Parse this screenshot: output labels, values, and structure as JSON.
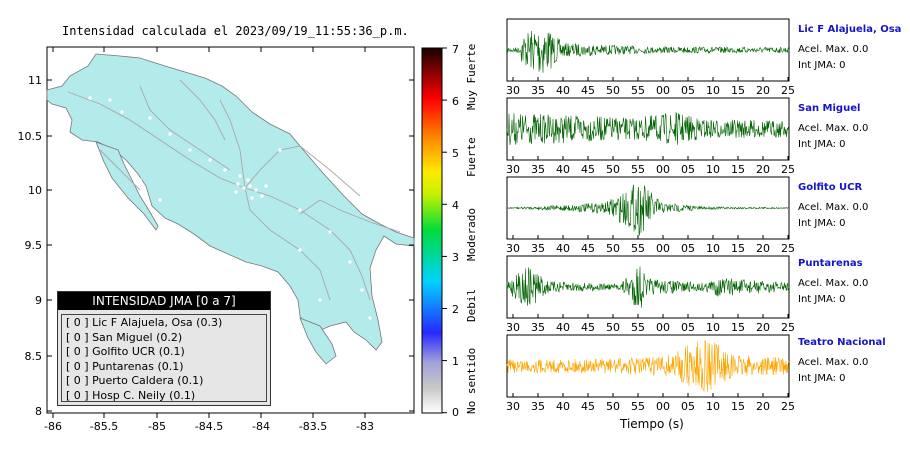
{
  "map": {
    "title": "Intensidad calculada el 2023/09/19_11:55:36_p.m.",
    "x_ticks": [
      "-86",
      "-85.5",
      "-85",
      "-84.5",
      "-84",
      "-83.5",
      "-83"
    ],
    "y_ticks": [
      "11",
      "10.5",
      "10",
      "9.5",
      "9",
      "8.5",
      "8"
    ],
    "land_color": "#b3eaea"
  },
  "legend": {
    "title": "INTENSIDAD JMA [0 a 7]",
    "items": [
      "[ 0 ]  Lic F Alajuela, Osa (0.3)",
      "[ 0 ]  San Miguel (0.2)",
      "[ 0 ]  Golfito UCR (0.1)",
      "[ 0 ]  Puntarenas (0.1)",
      "[ 0 ]  Puerto Caldera (0.1)",
      "[ 0 ]  Hosp C. Neily (0.1)"
    ]
  },
  "colorbar": {
    "tick_labels": [
      "7",
      "6",
      "5",
      "4",
      "3",
      "2",
      "1",
      "0"
    ],
    "labels": [
      "Muy Fuerte",
      "Fuerte",
      "Moderado",
      "Debil",
      "No sentido"
    ]
  },
  "stations": [
    {
      "name": "Lic F Alajuela, Osa",
      "acel": "Acel. Max. 0.0",
      "int": "Int JMA: 0",
      "color": "#006400",
      "ticks": [
        "30",
        "35",
        "40",
        "45",
        "50",
        "55",
        "00",
        "05",
        "10",
        "15",
        "20",
        "25"
      ]
    },
    {
      "name": "San Miguel",
      "acel": "Acel. Max. 0.0",
      "int": "Int JMA: 0",
      "color": "#006400",
      "ticks": [
        "30",
        "35",
        "40",
        "45",
        "50",
        "55",
        "00",
        "05",
        "10",
        "15",
        "20",
        "25"
      ]
    },
    {
      "name": "Golfito UCR",
      "acel": "Acel. Max. 0.0",
      "int": "Int JMA: 0",
      "color": "#006400",
      "ticks": [
        "30",
        "35",
        "40",
        "45",
        "50",
        "55",
        "00",
        "05",
        "10",
        "15",
        "20",
        "25"
      ]
    },
    {
      "name": "Puntarenas",
      "acel": "Acel. Max. 0.0",
      "int": "Int JMA: 0",
      "color": "#006400",
      "ticks": [
        "30",
        "35",
        "40",
        "45",
        "50",
        "55",
        "00",
        "05",
        "10",
        "15",
        "20",
        "25"
      ]
    },
    {
      "name": "Teatro Nacional",
      "acel": "Acel. Max. 0.0",
      "int": "Int JMA: 0",
      "color": "#ffa500",
      "ticks": [
        "30",
        "35",
        "40",
        "45",
        "50",
        "55",
        "00",
        "05",
        "10",
        "15",
        "20",
        "25"
      ]
    }
  ],
  "xlabel": "Tiempo (s)"
}
